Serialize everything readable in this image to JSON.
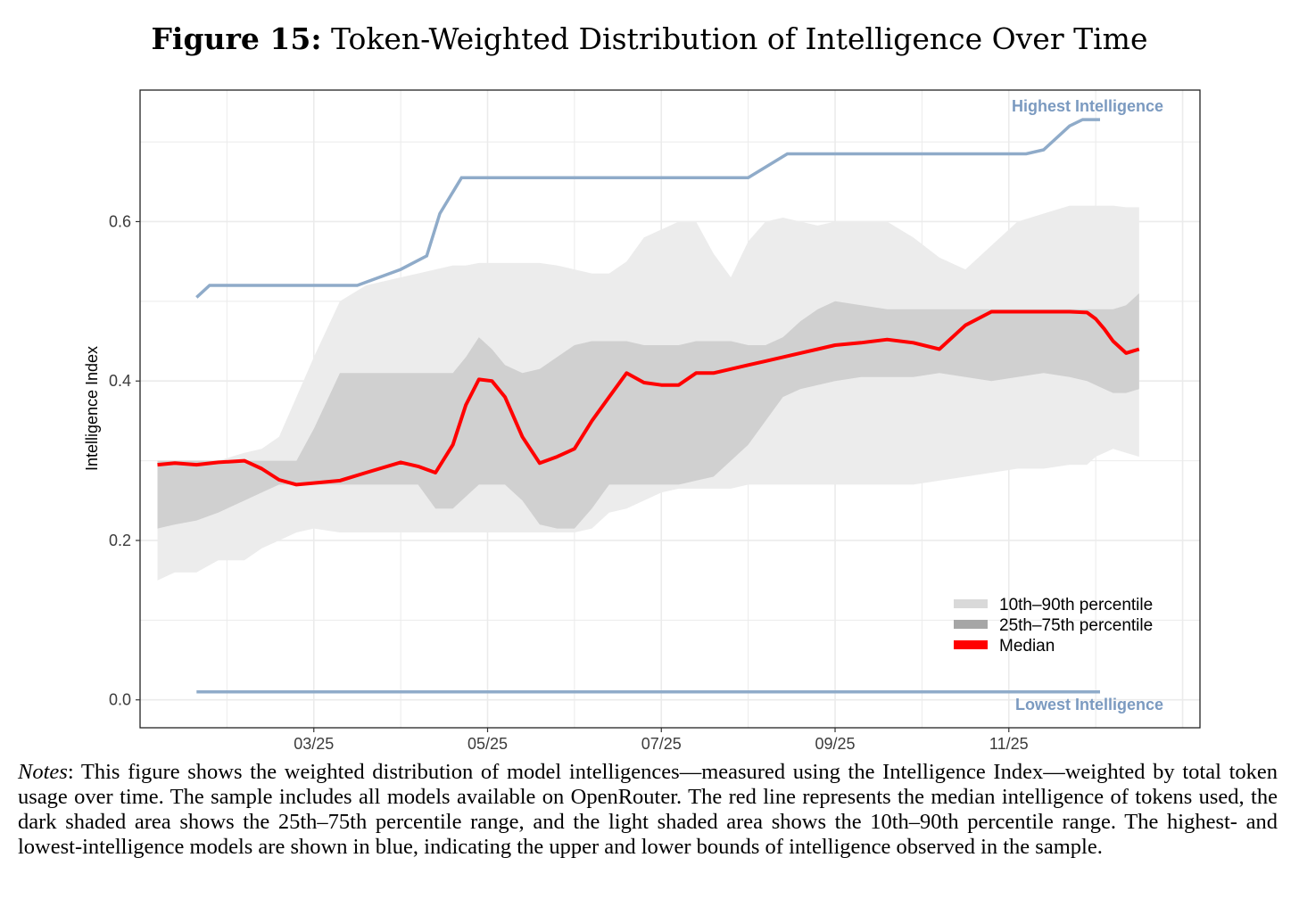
{
  "figure": {
    "label": "Figure 15:",
    "title": "Token-Weighted Distribution of Intelligence Over Time"
  },
  "notes": {
    "label": "Notes",
    "text": ": This figure shows the weighted distribution of model intelligences—measured using the Intelligence Index—weighted by total token usage over time. The sample includes all models available on OpenRouter. The red line represents the median intelligence of tokens used, the dark shaded area shows the 25th–75th percentile range, and the light shaded area shows the 10th–90th percentile range. The highest- and lowest-intelligence models are shown in blue, indicating the upper and lower bounds of intelligence observed in the sample."
  },
  "chart_data": {
    "type": "area",
    "ylabel": "Intelligence Index",
    "xlabel": "",
    "xlim": [
      0,
      12.2
    ],
    "ylim": [
      -0.035,
      0.765
    ],
    "grid": true,
    "x_ticks": [
      {
        "x": 2.0,
        "label": "03/25"
      },
      {
        "x": 4.0,
        "label": "05/25"
      },
      {
        "x": 6.0,
        "label": "07/25"
      },
      {
        "x": 8.0,
        "label": "09/25"
      },
      {
        "x": 10.0,
        "label": "11/25"
      }
    ],
    "y_ticks": [
      {
        "y": 0.0,
        "label": "0.0"
      },
      {
        "y": 0.2,
        "label": "0.2"
      },
      {
        "y": 0.4,
        "label": "0.4"
      },
      {
        "y": 0.6,
        "label": "0.6"
      }
    ],
    "legend": {
      "position": "bottom-right",
      "entries": [
        {
          "label": "10th–90th percentile",
          "color": "#d9d9d9"
        },
        {
          "label": "25th–75th percentile",
          "color": "#a6a6a6"
        },
        {
          "label": "Median",
          "color": "#ff0000"
        }
      ]
    },
    "annotations": [
      {
        "text": "Highest Intelligence",
        "series": "highest"
      },
      {
        "text": "Lowest Intelligence",
        "series": "lowest"
      }
    ],
    "colors": {
      "band_10_90": "#ececec",
      "band_25_75": "#d0d0d0",
      "median": "#ff0000",
      "bounds": "#8fabc9"
    },
    "x": [
      0.2,
      0.4,
      0.65,
      0.9,
      1.2,
      1.4,
      1.6,
      1.8,
      2.0,
      2.3,
      2.6,
      3.0,
      3.2,
      3.4,
      3.6,
      3.75,
      3.9,
      4.05,
      4.2,
      4.4,
      4.6,
      4.8,
      5.0,
      5.2,
      5.4,
      5.6,
      5.8,
      6.0,
      6.2,
      6.4,
      6.6,
      6.8,
      7.0,
      7.2,
      7.4,
      7.6,
      7.8,
      8.0,
      8.3,
      8.6,
      8.9,
      9.2,
      9.5,
      9.8,
      10.1,
      10.4,
      10.7,
      10.9,
      11.0,
      11.1,
      11.2,
      11.35,
      11.5
    ],
    "series": [
      {
        "name": "10th percentile",
        "values": [
          0.15,
          0.16,
          0.16,
          0.175,
          0.175,
          0.19,
          0.2,
          0.21,
          0.215,
          0.21,
          0.21,
          0.21,
          0.21,
          0.21,
          0.21,
          0.21,
          0.21,
          0.21,
          0.21,
          0.21,
          0.21,
          0.21,
          0.21,
          0.215,
          0.235,
          0.24,
          0.25,
          0.26,
          0.265,
          0.265,
          0.265,
          0.265,
          0.27,
          0.27,
          0.27,
          0.27,
          0.27,
          0.27,
          0.27,
          0.27,
          0.27,
          0.275,
          0.28,
          0.285,
          0.29,
          0.29,
          0.295,
          0.295,
          0.305,
          0.31,
          0.315,
          0.31,
          0.305
        ]
      },
      {
        "name": "25th percentile",
        "values": [
          0.215,
          0.22,
          0.225,
          0.235,
          0.25,
          0.26,
          0.27,
          0.27,
          0.27,
          0.27,
          0.27,
          0.27,
          0.27,
          0.24,
          0.24,
          0.255,
          0.27,
          0.27,
          0.27,
          0.25,
          0.22,
          0.215,
          0.215,
          0.24,
          0.27,
          0.27,
          0.27,
          0.27,
          0.27,
          0.275,
          0.28,
          0.3,
          0.32,
          0.35,
          0.38,
          0.39,
          0.395,
          0.4,
          0.405,
          0.405,
          0.405,
          0.41,
          0.405,
          0.4,
          0.405,
          0.41,
          0.405,
          0.4,
          0.395,
          0.39,
          0.385,
          0.385,
          0.39
        ]
      },
      {
        "name": "75th percentile",
        "values": [
          0.3,
          0.3,
          0.3,
          0.3,
          0.3,
          0.3,
          0.3,
          0.3,
          0.34,
          0.41,
          0.41,
          0.41,
          0.41,
          0.41,
          0.41,
          0.43,
          0.455,
          0.44,
          0.42,
          0.41,
          0.415,
          0.43,
          0.445,
          0.45,
          0.45,
          0.45,
          0.445,
          0.445,
          0.445,
          0.45,
          0.45,
          0.45,
          0.445,
          0.445,
          0.455,
          0.475,
          0.49,
          0.5,
          0.495,
          0.49,
          0.49,
          0.49,
          0.49,
          0.49,
          0.49,
          0.49,
          0.49,
          0.49,
          0.49,
          0.49,
          0.49,
          0.495,
          0.51
        ]
      },
      {
        "name": "90th percentile",
        "values": [
          0.3,
          0.3,
          0.3,
          0.3,
          0.31,
          0.315,
          0.33,
          0.38,
          0.43,
          0.5,
          0.52,
          0.53,
          0.535,
          0.54,
          0.545,
          0.545,
          0.548,
          0.548,
          0.548,
          0.548,
          0.548,
          0.545,
          0.54,
          0.535,
          0.535,
          0.55,
          0.58,
          0.59,
          0.6,
          0.6,
          0.56,
          0.53,
          0.575,
          0.6,
          0.605,
          0.6,
          0.595,
          0.6,
          0.6,
          0.6,
          0.58,
          0.555,
          0.54,
          0.57,
          0.6,
          0.61,
          0.62,
          0.62,
          0.62,
          0.62,
          0.62,
          0.618,
          0.618
        ]
      },
      {
        "name": "Median",
        "values": [
          0.295,
          0.297,
          0.295,
          0.298,
          0.3,
          0.29,
          0.276,
          0.27,
          0.272,
          0.275,
          0.285,
          0.298,
          0.293,
          0.285,
          0.32,
          0.37,
          0.402,
          0.4,
          0.38,
          0.33,
          0.297,
          0.305,
          0.315,
          0.35,
          0.38,
          0.41,
          0.398,
          0.395,
          0.395,
          0.41,
          0.41,
          0.415,
          0.42,
          0.425,
          0.43,
          0.435,
          0.44,
          0.445,
          0.448,
          0.452,
          0.448,
          0.44,
          0.47,
          0.487,
          0.487,
          0.487,
          0.487,
          0.486,
          0.478,
          0.465,
          0.45,
          0.435,
          0.44
        ]
      },
      {
        "name": "Highest Intelligence",
        "points": [
          [
            0.65,
            0.505
          ],
          [
            0.8,
            0.52
          ],
          [
            1.5,
            0.52
          ],
          [
            2.5,
            0.52
          ],
          [
            3.0,
            0.54
          ],
          [
            3.3,
            0.557
          ],
          [
            3.45,
            0.61
          ],
          [
            3.7,
            0.655
          ],
          [
            6.0,
            0.655
          ],
          [
            7.0,
            0.655
          ],
          [
            7.45,
            0.685
          ],
          [
            9.5,
            0.685
          ],
          [
            10.2,
            0.685
          ],
          [
            10.4,
            0.69
          ],
          [
            10.7,
            0.72
          ],
          [
            10.85,
            0.728
          ],
          [
            11.05,
            0.728
          ]
        ]
      },
      {
        "name": "Lowest Intelligence",
        "points": [
          [
            0.65,
            0.01
          ],
          [
            11.05,
            0.01
          ]
        ]
      }
    ]
  }
}
